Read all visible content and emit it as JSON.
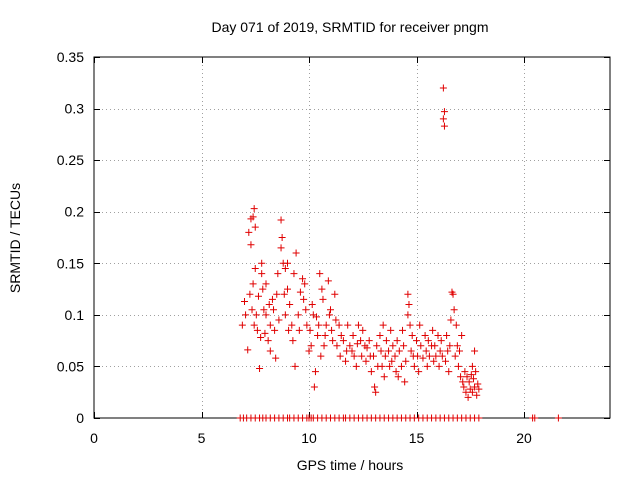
{
  "chart_data": {
    "type": "scatter",
    "title": "Day 071 of 2019, SRMTID for receiver pngm",
    "xlabel": "GPS time / hours",
    "ylabel": "SRMTID / TECUs",
    "xlim": [
      0,
      24
    ],
    "ylim": [
      0,
      0.35
    ],
    "xticks": [
      0,
      5,
      10,
      15,
      20
    ],
    "xtick_labels": [
      "0",
      "5",
      "10",
      "15",
      "20"
    ],
    "yticks": [
      0,
      0.05,
      0.1,
      0.15,
      0.2,
      0.25,
      0.3,
      0.35
    ],
    "ytick_labels": [
      "0",
      "0.05",
      "0.1",
      "0.15",
      "0.2",
      "0.25",
      "0.3",
      "0.35"
    ],
    "grid": true,
    "marker": "plus",
    "color": "#e00000",
    "series": [
      {
        "name": "SRMTID",
        "points": [
          [
            6.9,
            0.09
          ],
          [
            7.0,
            0.113
          ],
          [
            7.05,
            0.1
          ],
          [
            7.15,
            0.066
          ],
          [
            7.2,
            0.18
          ],
          [
            7.25,
            0.12
          ],
          [
            7.3,
            0.193
          ],
          [
            7.3,
            0.168
          ],
          [
            7.35,
            0.105
          ],
          [
            7.4,
            0.195
          ],
          [
            7.4,
            0.13
          ],
          [
            7.45,
            0.203
          ],
          [
            7.45,
            0.09
          ],
          [
            7.5,
            0.185
          ],
          [
            7.5,
            0.145
          ],
          [
            7.55,
            0.1
          ],
          [
            7.6,
            0.085
          ],
          [
            7.65,
            0.118
          ],
          [
            7.7,
            0.048
          ],
          [
            7.75,
            0.078
          ],
          [
            7.8,
            0.14
          ],
          [
            7.8,
            0.15
          ],
          [
            7.85,
            0.125
          ],
          [
            7.9,
            0.105
          ],
          [
            7.95,
            0.082
          ],
          [
            8.0,
            0.13
          ],
          [
            8.0,
            0.1
          ],
          [
            8.1,
            0.075
          ],
          [
            8.15,
            0.11
          ],
          [
            8.2,
            0.065
          ],
          [
            8.2,
            0.09
          ],
          [
            8.3,
            0.115
          ],
          [
            8.35,
            0.105
          ],
          [
            8.4,
            0.085
          ],
          [
            8.45,
            0.058
          ],
          [
            8.5,
            0.12
          ],
          [
            8.55,
            0.14
          ],
          [
            8.6,
            0.095
          ],
          [
            8.7,
            0.165
          ],
          [
            8.7,
            0.192
          ],
          [
            8.75,
            0.175
          ],
          [
            8.8,
            0.15
          ],
          [
            8.85,
            0.12
          ],
          [
            8.9,
            0.145
          ],
          [
            8.9,
            0.1
          ],
          [
            9.0,
            0.15
          ],
          [
            9.0,
            0.125
          ],
          [
            9.05,
            0.085
          ],
          [
            9.1,
            0.11
          ],
          [
            9.2,
            0.09
          ],
          [
            9.25,
            0.075
          ],
          [
            9.3,
            0.14
          ],
          [
            9.35,
            0.05
          ],
          [
            9.4,
            0.16
          ],
          [
            9.5,
            0.1
          ],
          [
            9.55,
            0.085
          ],
          [
            9.6,
            0.122
          ],
          [
            9.7,
            0.135
          ],
          [
            9.75,
            0.115
          ],
          [
            9.8,
            0.13
          ],
          [
            9.85,
            0.105
          ],
          [
            9.9,
            0.09
          ],
          [
            10.0,
            0.065
          ],
          [
            10.05,
            0.085
          ],
          [
            10.1,
            0.07
          ],
          [
            10.15,
            0.11
          ],
          [
            10.2,
            0.1
          ],
          [
            10.25,
            0.03
          ],
          [
            10.3,
            0.045
          ],
          [
            10.35,
            0.098
          ],
          [
            10.4,
            0.08
          ],
          [
            10.45,
            0.09
          ],
          [
            10.5,
            0.14
          ],
          [
            10.55,
            0.06
          ],
          [
            10.6,
            0.125
          ],
          [
            10.65,
            0.115
          ],
          [
            10.7,
            0.07
          ],
          [
            10.75,
            0.08
          ],
          [
            10.8,
            0.09
          ],
          [
            10.9,
            0.133
          ],
          [
            10.95,
            0.1
          ],
          [
            11.0,
            0.105
          ],
          [
            11.05,
            0.085
          ],
          [
            11.1,
            0.075
          ],
          [
            11.2,
            0.12
          ],
          [
            11.25,
            0.095
          ],
          [
            11.3,
            0.07
          ],
          [
            11.4,
            0.09
          ],
          [
            11.45,
            0.06
          ],
          [
            11.5,
            0.08
          ],
          [
            11.6,
            0.075
          ],
          [
            11.7,
            0.055
          ],
          [
            11.75,
            0.065
          ],
          [
            11.8,
            0.09
          ],
          [
            11.9,
            0.07
          ],
          [
            12.0,
            0.065
          ],
          [
            12.05,
            0.08
          ],
          [
            12.1,
            0.06
          ],
          [
            12.2,
            0.05
          ],
          [
            12.25,
            0.072
          ],
          [
            12.3,
            0.09
          ],
          [
            12.4,
            0.075
          ],
          [
            12.45,
            0.06
          ],
          [
            12.5,
            0.085
          ],
          [
            12.6,
            0.07
          ],
          [
            12.65,
            0.055
          ],
          [
            12.7,
            0.068
          ],
          [
            12.8,
            0.075
          ],
          [
            12.85,
            0.06
          ],
          [
            12.9,
            0.045
          ],
          [
            13.0,
            0.06
          ],
          [
            13.05,
            0.03
          ],
          [
            13.1,
            0.025
          ],
          [
            13.15,
            0.07
          ],
          [
            13.2,
            0.05
          ],
          [
            13.3,
            0.08
          ],
          [
            13.35,
            0.065
          ],
          [
            13.4,
            0.05
          ],
          [
            13.45,
            0.09
          ],
          [
            13.5,
            0.04
          ],
          [
            13.55,
            0.06
          ],
          [
            13.6,
            0.075
          ],
          [
            13.7,
            0.065
          ],
          [
            13.75,
            0.05
          ],
          [
            13.8,
            0.085
          ],
          [
            13.85,
            0.055
          ],
          [
            13.9,
            0.07
          ],
          [
            14.0,
            0.06
          ],
          [
            14.05,
            0.045
          ],
          [
            14.1,
            0.075
          ],
          [
            14.15,
            0.04
          ],
          [
            14.2,
            0.065
          ],
          [
            14.3,
            0.05
          ],
          [
            14.35,
            0.085
          ],
          [
            14.4,
            0.07
          ],
          [
            14.45,
            0.035
          ],
          [
            14.5,
            0.055
          ],
          [
            14.6,
            0.1
          ],
          [
            14.6,
            0.12
          ],
          [
            14.65,
            0.11
          ],
          [
            14.7,
            0.09
          ],
          [
            14.75,
            0.065
          ],
          [
            14.8,
            0.08
          ],
          [
            14.85,
            0.06
          ],
          [
            14.9,
            0.05
          ],
          [
            15.0,
            0.075
          ],
          [
            15.05,
            0.06
          ],
          [
            15.1,
            0.045
          ],
          [
            15.15,
            0.09
          ],
          [
            15.2,
            0.07
          ],
          [
            15.3,
            0.058
          ],
          [
            15.4,
            0.08
          ],
          [
            15.45,
            0.065
          ],
          [
            15.5,
            0.05
          ],
          [
            15.55,
            0.075
          ],
          [
            15.6,
            0.06
          ],
          [
            15.7,
            0.07
          ],
          [
            15.75,
            0.085
          ],
          [
            15.8,
            0.055
          ],
          [
            15.85,
            0.07
          ],
          [
            15.9,
            0.06
          ],
          [
            16.0,
            0.08
          ],
          [
            16.05,
            0.05
          ],
          [
            16.1,
            0.065
          ],
          [
            16.15,
            0.075
          ],
          [
            16.2,
            0.06
          ],
          [
            16.25,
            0.32
          ],
          [
            16.25,
            0.29
          ],
          [
            16.3,
            0.283
          ],
          [
            16.3,
            0.297
          ],
          [
            16.35,
            0.055
          ],
          [
            16.4,
            0.08
          ],
          [
            16.45,
            0.065
          ],
          [
            16.5,
            0.045
          ],
          [
            16.55,
            0.07
          ],
          [
            16.6,
            0.095
          ],
          [
            16.65,
            0.122
          ],
          [
            16.7,
            0.12
          ],
          [
            16.75,
            0.105
          ],
          [
            16.8,
            0.06
          ],
          [
            16.85,
            0.09
          ],
          [
            16.9,
            0.07
          ],
          [
            16.95,
            0.05
          ],
          [
            17.0,
            0.065
          ],
          [
            17.05,
            0.04
          ],
          [
            17.1,
            0.08
          ],
          [
            17.15,
            0.035
          ],
          [
            17.2,
            0.03
          ],
          [
            17.25,
            0.045
          ],
          [
            17.3,
            0.025
          ],
          [
            17.35,
            0.04
          ],
          [
            17.4,
            0.02
          ],
          [
            17.45,
            0.035
          ],
          [
            17.5,
            0.028
          ],
          [
            17.55,
            0.042
          ],
          [
            17.6,
            0.025
          ],
          [
            17.65,
            0.038
          ],
          [
            17.7,
            0.03
          ],
          [
            17.75,
            0.045
          ],
          [
            17.8,
            0.022
          ],
          [
            17.85,
            0.033
          ],
          [
            17.9,
            0.028
          ],
          [
            17.7,
            0.065
          ],
          [
            17.6,
            0.05
          ],
          [
            6.8,
            0
          ],
          [
            6.95,
            0
          ],
          [
            7.1,
            0
          ],
          [
            7.3,
            0
          ],
          [
            7.5,
            0
          ],
          [
            7.7,
            0
          ],
          [
            7.85,
            0
          ],
          [
            8.0,
            0
          ],
          [
            8.2,
            0
          ],
          [
            8.4,
            0
          ],
          [
            8.6,
            0
          ],
          [
            8.8,
            0
          ],
          [
            9.0,
            0
          ],
          [
            9.1,
            0
          ],
          [
            9.3,
            0
          ],
          [
            9.5,
            0
          ],
          [
            9.7,
            0
          ],
          [
            9.9,
            0
          ],
          [
            10.0,
            0
          ],
          [
            10.1,
            0
          ],
          [
            10.2,
            0
          ],
          [
            10.4,
            0
          ],
          [
            10.6,
            0
          ],
          [
            10.8,
            0
          ],
          [
            11.0,
            0
          ],
          [
            11.2,
            0
          ],
          [
            11.4,
            0
          ],
          [
            11.6,
            0
          ],
          [
            11.7,
            0
          ],
          [
            11.9,
            0
          ],
          [
            12.1,
            0
          ],
          [
            12.3,
            0
          ],
          [
            12.5,
            0
          ],
          [
            12.7,
            0
          ],
          [
            12.9,
            0
          ],
          [
            13.1,
            0
          ],
          [
            13.3,
            0
          ],
          [
            13.5,
            0
          ],
          [
            13.7,
            0
          ],
          [
            13.9,
            0
          ],
          [
            14.1,
            0
          ],
          [
            14.3,
            0
          ],
          [
            14.5,
            0
          ],
          [
            14.7,
            0
          ],
          [
            14.9,
            0
          ],
          [
            15.1,
            0
          ],
          [
            15.3,
            0
          ],
          [
            15.5,
            0
          ],
          [
            15.7,
            0
          ],
          [
            15.9,
            0
          ],
          [
            16.1,
            0
          ],
          [
            16.3,
            0
          ],
          [
            16.5,
            0
          ],
          [
            16.7,
            0
          ],
          [
            16.9,
            0
          ],
          [
            17.1,
            0
          ],
          [
            17.3,
            0
          ],
          [
            17.5,
            0
          ],
          [
            17.7,
            0
          ],
          [
            17.9,
            0
          ],
          [
            20.4,
            0
          ],
          [
            20.5,
            0
          ],
          [
            21.6,
            0
          ]
        ]
      }
    ]
  }
}
